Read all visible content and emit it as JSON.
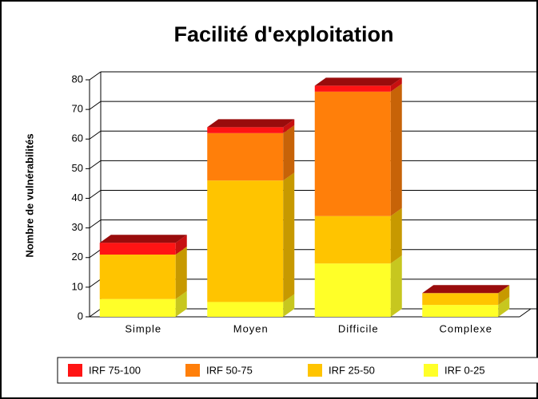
{
  "chart_data": {
    "type": "bar3d_stacked",
    "title": "Facilité d'exploitation",
    "y_label": "Nombre de vulnérabilités",
    "categories": [
      "Simple",
      "Moyen",
      "Difficile",
      "Complexe"
    ],
    "series": [
      {
        "name": "IRF 75-100",
        "color": "#ff1414",
        "values": [
          4,
          2,
          2,
          0
        ]
      },
      {
        "name": "IRF 50-75",
        "color": "#ff7f0a",
        "values": [
          0,
          16,
          42,
          0
        ]
      },
      {
        "name": "IRF 25-50",
        "color": "#ffc400",
        "values": [
          15,
          41,
          16,
          4
        ]
      },
      {
        "name": "IRF 0-25",
        "color": "#ffff28",
        "values": [
          6,
          5,
          18,
          4
        ]
      }
    ],
    "ylim": [
      0,
      80
    ],
    "yticks": [
      0,
      10,
      20,
      30,
      40,
      50,
      60,
      70,
      80
    ],
    "grid": true
  }
}
